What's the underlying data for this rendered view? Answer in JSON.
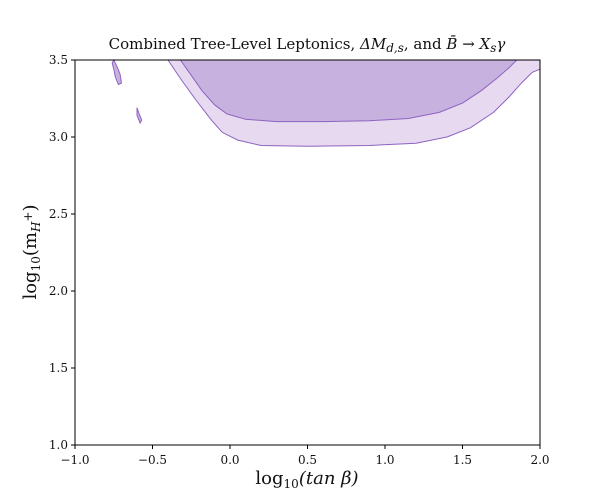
{
  "chart_data": {
    "type": "area",
    "title_parts": {
      "prefix": "Combined Tree-Level Leptonics, ",
      "delta": "ΔM",
      "delta_sub": "d,s",
      "mid": ", and ",
      "bbar": "B̄",
      "arrow": " → ",
      "xs": "X",
      "xs_sub": "s",
      "gamma": "γ"
    },
    "xlabel_parts": {
      "log": "log",
      "base": "10",
      "arg": "(tan β)"
    },
    "ylabel_parts": {
      "log": "log",
      "base": "10",
      "open": "(m",
      "sub_h": "H",
      "sup_plus": "+",
      "close": ")"
    },
    "xlim": [
      -1.0,
      2.0
    ],
    "ylim": [
      1.0,
      3.5
    ],
    "x_ticks": [
      {
        "value": -1.0,
        "label": "−1.0"
      },
      {
        "value": -0.5,
        "label": "−0.5"
      },
      {
        "value": 0.0,
        "label": "0.0"
      },
      {
        "value": 0.5,
        "label": "0.5"
      },
      {
        "value": 1.0,
        "label": "1.0"
      },
      {
        "value": 1.5,
        "label": "1.5"
      },
      {
        "value": 2.0,
        "label": "2.0"
      }
    ],
    "y_ticks": [
      {
        "value": 1.0,
        "label": "1.0"
      },
      {
        "value": 1.5,
        "label": "1.5"
      },
      {
        "value": 2.0,
        "label": "2.0"
      },
      {
        "value": 2.5,
        "label": "2.5"
      },
      {
        "value": 3.0,
        "label": "3.0"
      },
      {
        "value": 3.5,
        "label": "3.5"
      }
    ],
    "grid": false,
    "regions": [
      {
        "level": "outer",
        "fill": "#e6d9f0",
        "stroke": "#8e63c1",
        "points": [
          [
            -0.4,
            3.5
          ],
          [
            -0.32,
            3.38
          ],
          [
            -0.22,
            3.24
          ],
          [
            -0.12,
            3.11
          ],
          [
            -0.05,
            3.03
          ],
          [
            0.05,
            2.98
          ],
          [
            0.2,
            2.945
          ],
          [
            0.5,
            2.94
          ],
          [
            0.9,
            2.945
          ],
          [
            1.2,
            2.96
          ],
          [
            1.4,
            3.0
          ],
          [
            1.55,
            3.06
          ],
          [
            1.7,
            3.16
          ],
          [
            1.8,
            3.26
          ],
          [
            1.88,
            3.35
          ],
          [
            1.95,
            3.42
          ],
          [
            2.0,
            3.44
          ],
          [
            2.0,
            3.5
          ]
        ]
      },
      {
        "level": "inner",
        "fill": "#c7b2df",
        "stroke": "#8e63c1",
        "points": [
          [
            -0.32,
            3.5
          ],
          [
            -0.25,
            3.4
          ],
          [
            -0.18,
            3.3
          ],
          [
            -0.1,
            3.21
          ],
          [
            -0.02,
            3.15
          ],
          [
            0.1,
            3.115
          ],
          [
            0.3,
            3.1
          ],
          [
            0.6,
            3.1
          ],
          [
            0.9,
            3.105
          ],
          [
            1.15,
            3.12
          ],
          [
            1.35,
            3.16
          ],
          [
            1.5,
            3.22
          ],
          [
            1.62,
            3.3
          ],
          [
            1.72,
            3.38
          ],
          [
            1.8,
            3.45
          ],
          [
            1.85,
            3.5
          ]
        ]
      },
      {
        "level": "island",
        "fill": "#c7b2df",
        "stroke": "#8e63c1",
        "points": [
          [
            -0.76,
            3.48
          ],
          [
            -0.75,
            3.44
          ],
          [
            -0.74,
            3.39
          ],
          [
            -0.72,
            3.34
          ],
          [
            -0.7,
            3.35
          ],
          [
            -0.71,
            3.41
          ],
          [
            -0.73,
            3.46
          ],
          [
            -0.75,
            3.5
          ]
        ]
      },
      {
        "level": "island",
        "fill": "#c7b2df",
        "stroke": "#8e63c1",
        "points": [
          [
            -0.6,
            3.19
          ],
          [
            -0.6,
            3.14
          ],
          [
            -0.58,
            3.09
          ],
          [
            -0.57,
            3.11
          ],
          [
            -0.59,
            3.16
          ]
        ]
      }
    ]
  }
}
